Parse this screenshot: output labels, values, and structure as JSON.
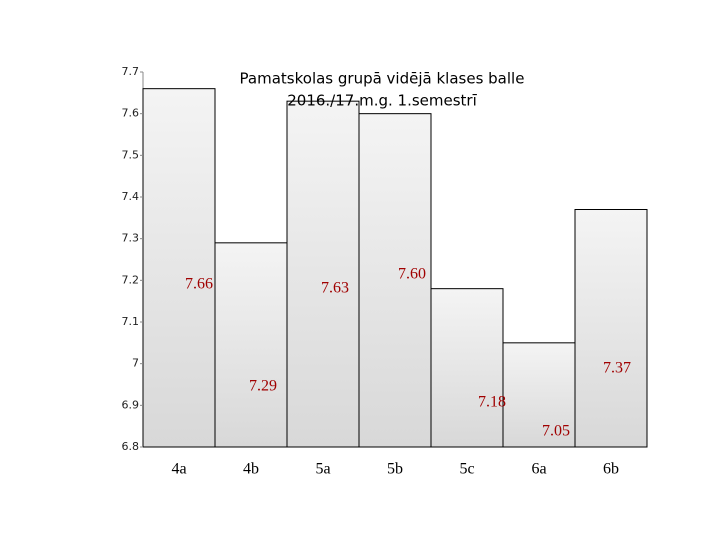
{
  "chart_data": {
    "type": "bar",
    "title": [
      "Pamatskolas grupā vidējā klases balle",
      "2016./17.m.g. 1.semestrī"
    ],
    "categories": [
      "4a",
      "4b",
      "5a",
      "5b",
      "5c",
      "6a",
      "6b"
    ],
    "values": [
      7.66,
      7.29,
      7.63,
      7.6,
      7.18,
      7.05,
      7.37
    ],
    "value_labels": [
      "7.66",
      "7.29",
      "7.63",
      "7.60",
      "7.18",
      "7.05",
      "7.37"
    ],
    "color": "#e6e6e6",
    "ylim": [
      6.8,
      7.7
    ],
    "yticks": [
      6.8,
      6.9,
      7,
      7.1,
      7.2,
      7.3,
      7.4,
      7.5,
      7.6,
      7.7
    ],
    "grid": false
  }
}
